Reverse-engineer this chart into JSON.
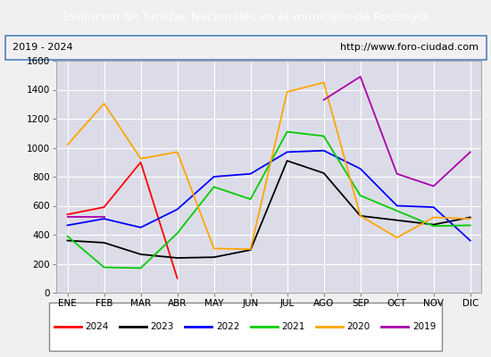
{
  "title": "Evolucion Nº Turistas Nacionales en el municipio de Rodonyià",
  "title_display": "Evolucion Nº Turistas Nacionales en el municipio de Rodonyià",
  "subtitle_left": "2019 - 2024",
  "subtitle_right": "http://www.foro-ciudad.com",
  "months": [
    "ENE",
    "FEB",
    "MAR",
    "ABR",
    "MAY",
    "JUN",
    "JUL",
    "AGO",
    "SEP",
    "OCT",
    "NOV",
    "DIC"
  ],
  "series": {
    "2024": [
      540,
      590,
      900,
      100,
      null,
      null,
      null,
      null,
      null,
      null,
      null,
      null
    ],
    "2023": [
      360,
      345,
      265,
      240,
      245,
      295,
      910,
      825,
      530,
      500,
      470,
      520
    ],
    "2022": [
      465,
      510,
      450,
      575,
      800,
      820,
      970,
      980,
      855,
      600,
      590,
      360
    ],
    "2021": [
      390,
      175,
      170,
      410,
      730,
      645,
      1110,
      1080,
      670,
      565,
      460,
      465
    ],
    "2020": [
      1020,
      1305,
      925,
      970,
      305,
      300,
      1385,
      1450,
      530,
      380,
      520,
      510
    ],
    "2019": [
      525,
      525,
      null,
      null,
      null,
      null,
      null,
      1330,
      1490,
      820,
      735,
      970
    ]
  },
  "colors": {
    "2024": "#ff0000",
    "2023": "#000000",
    "2022": "#0000ff",
    "2021": "#00cc00",
    "2020": "#ffa500",
    "2019": "#aa00aa"
  },
  "ylim": [
    0,
    1600
  ],
  "yticks": [
    0,
    200,
    400,
    600,
    800,
    1000,
    1200,
    1400,
    1600
  ],
  "title_bg_color": "#4472c4",
  "title_text_color": "#ffffff",
  "plot_bg_color": "#dcdce8",
  "outer_bg_color": "#f0f0f0",
  "grid_color": "#ffffff",
  "border_color": "#5080c0"
}
